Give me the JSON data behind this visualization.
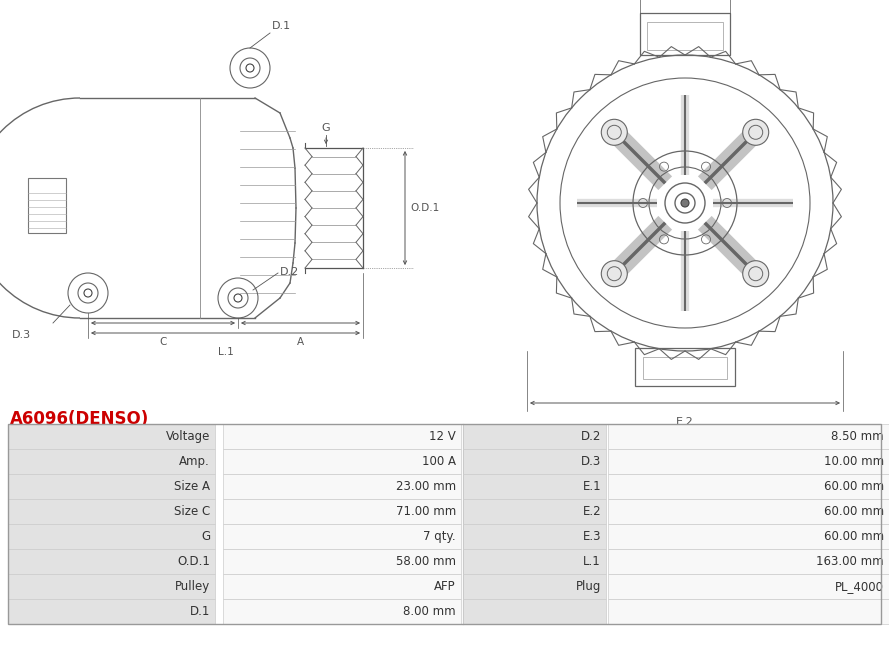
{
  "title": "A6096(DENSO)",
  "title_color": "#cc0000",
  "bg_color": "#ffffff",
  "table_rows": [
    [
      "Voltage",
      "12 V",
      "D.2",
      "8.50 mm"
    ],
    [
      "Amp.",
      "100 A",
      "D.3",
      "10.00 mm"
    ],
    [
      "Size A",
      "23.00 mm",
      "E.1",
      "60.00 mm"
    ],
    [
      "Size C",
      "71.00 mm",
      "E.2",
      "60.00 mm"
    ],
    [
      "G",
      "7 qty.",
      "E.3",
      "60.00 mm"
    ],
    [
      "O.D.1",
      "58.00 mm",
      "L.1",
      "163.00 mm"
    ],
    [
      "Pulley",
      "AFP",
      "Plug",
      "PL_4000"
    ],
    [
      "D.1",
      "8.00 mm",
      "",
      ""
    ]
  ],
  "dim_color": "#555555",
  "body_color": "#666666",
  "line_color": "#555555"
}
